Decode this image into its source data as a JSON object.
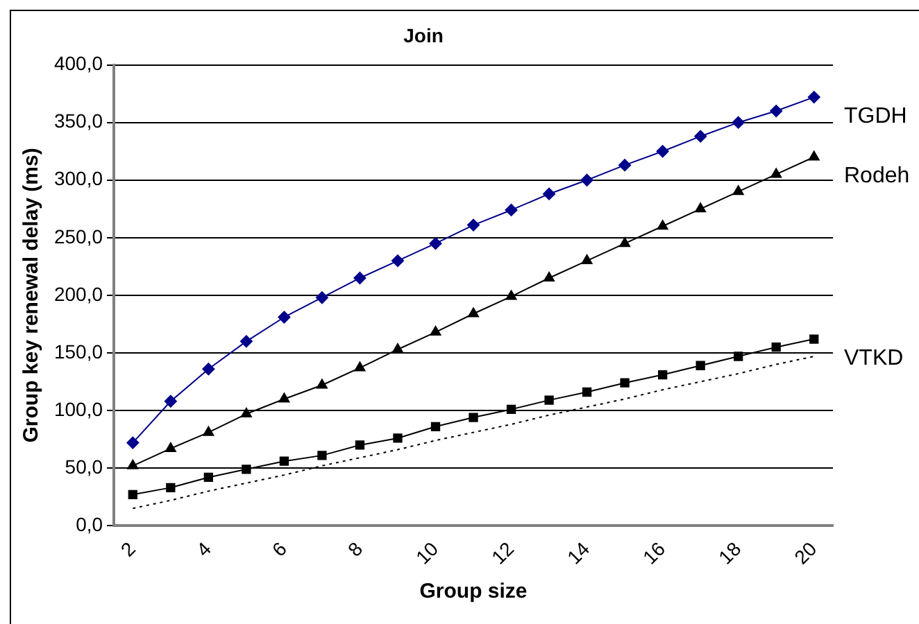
{
  "chart_data": {
    "type": "line",
    "title": "Join",
    "xlabel": "Group size",
    "ylabel": "Group key renewal delay (ms)",
    "categories": [
      "2",
      null,
      "4",
      null,
      "6",
      null,
      "8",
      null,
      "10",
      null,
      "12",
      null,
      "14",
      null,
      "16",
      null,
      "18",
      null,
      "20"
    ],
    "series": [
      {
        "name": "TGDH",
        "color": "#00008b",
        "marker": "diamond",
        "values": [
          72,
          108,
          136,
          160,
          181,
          198,
          215,
          230,
          245,
          261,
          274,
          288,
          300,
          313,
          325,
          338,
          350,
          360,
          372
        ]
      },
      {
        "name": "Rodeh",
        "color": "#000000",
        "marker": "triangle",
        "values": [
          52,
          67,
          81,
          97,
          110,
          122,
          137,
          153,
          168,
          184,
          199,
          215,
          230,
          245,
          260,
          275,
          290,
          305,
          320
        ]
      },
      {
        "name": "VTKD",
        "color": "#000000",
        "marker": "square",
        "values": [
          27,
          33,
          42,
          49,
          56,
          61,
          70,
          76,
          86,
          94,
          101,
          109,
          116,
          124,
          131,
          139,
          147,
          155,
          162
        ]
      },
      {
        "color": "#000000",
        "marker": "none",
        "line_style": "dotted",
        "values": [
          15,
          22,
          30,
          37,
          44,
          52,
          59,
          66,
          74,
          81,
          88,
          96,
          103,
          110,
          118,
          125,
          132,
          140,
          147
        ]
      }
    ],
    "ylim": [
      0,
      400
    ],
    "yticks": [
      {
        "value": 0,
        "label": "0,0"
      },
      {
        "value": 50,
        "label": "50,0"
      },
      {
        "value": 100,
        "label": "100,0"
      },
      {
        "value": 150,
        "label": "150,0"
      },
      {
        "value": 200,
        "label": "200,0"
      },
      {
        "value": 250,
        "label": "250,0"
      },
      {
        "value": 300,
        "label": "300,0"
      },
      {
        "value": 350,
        "label": "350,0"
      },
      {
        "value": 400,
        "label": "400,0"
      }
    ],
    "grid": "y",
    "legend": false
  }
}
